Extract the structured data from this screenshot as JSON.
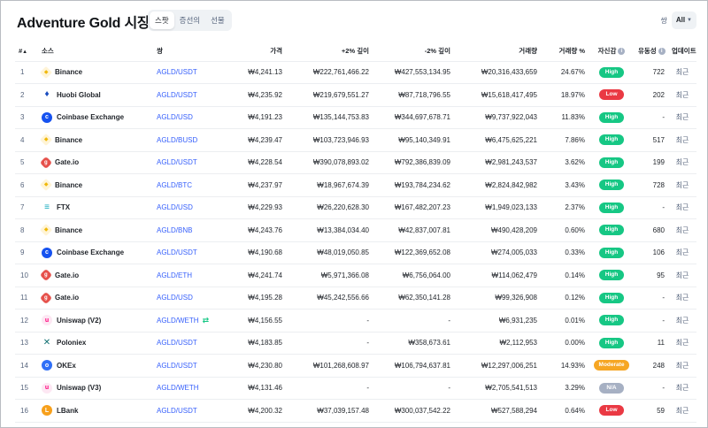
{
  "title": "Adventure Gold 시장",
  "segments": [
    "스팟",
    "증선의",
    "선물"
  ],
  "filter": {
    "label": "쌍",
    "value": "All"
  },
  "columns": {
    "rank": "#",
    "rank_arrow": "▲",
    "source": "소스",
    "pair": "쌍",
    "price": "가격",
    "depth_plus": "+2% 깊이",
    "depth_minus": "-2% 깊이",
    "volume": "거래량",
    "volume_pct": "거래량 %",
    "confidence": "자신감",
    "liquidity": "유동성",
    "updated": "업데이트"
  },
  "rows": [
    {
      "rank": "1",
      "source": "Binance",
      "logo": "binance-icon",
      "pair": "AGLD/USDT",
      "price": "₩4,241.13",
      "depth_plus": "₩222,761,466.22",
      "depth_minus": "₩427,553,134.95",
      "volume": "₩20,316,433,659",
      "volume_pct": "24.67%",
      "confidence": "High",
      "liquidity": "722",
      "updated": "최근"
    },
    {
      "rank": "2",
      "source": "Huobi Global",
      "logo": "huobi-icon",
      "pair": "AGLD/USDT",
      "price": "₩4,235.92",
      "depth_plus": "₩219,679,551.27",
      "depth_minus": "₩87,718,796.55",
      "volume": "₩15,618,417,495",
      "volume_pct": "18.97%",
      "confidence": "Low",
      "liquidity": "202",
      "updated": "최근"
    },
    {
      "rank": "3",
      "source": "Coinbase Exchange",
      "logo": "coinbase-icon",
      "pair": "AGLD/USD",
      "price": "₩4,191.23",
      "depth_plus": "₩135,144,753.83",
      "depth_minus": "₩344,697,678.71",
      "volume": "₩9,737,922,043",
      "volume_pct": "11.83%",
      "confidence": "High",
      "liquidity": "-",
      "updated": "최근"
    },
    {
      "rank": "4",
      "source": "Binance",
      "logo": "binance-icon",
      "pair": "AGLD/BUSD",
      "price": "₩4,239.47",
      "depth_plus": "₩103,723,946.93",
      "depth_minus": "₩95,140,349.91",
      "volume": "₩6,475,625,221",
      "volume_pct": "7.86%",
      "confidence": "High",
      "liquidity": "517",
      "updated": "최근"
    },
    {
      "rank": "5",
      "source": "Gate.io",
      "logo": "gate-icon",
      "pair": "AGLD/USDT",
      "price": "₩4,228.54",
      "depth_plus": "₩390,078,893.02",
      "depth_minus": "₩792,386,839.09",
      "volume": "₩2,981,243,537",
      "volume_pct": "3.62%",
      "confidence": "High",
      "liquidity": "199",
      "updated": "최근"
    },
    {
      "rank": "6",
      "source": "Binance",
      "logo": "binance-icon",
      "pair": "AGLD/BTC",
      "price": "₩4,237.97",
      "depth_plus": "₩18,967,674.39",
      "depth_minus": "₩193,784,234.62",
      "volume": "₩2,824,842,982",
      "volume_pct": "3.43%",
      "confidence": "High",
      "liquidity": "728",
      "updated": "최근"
    },
    {
      "rank": "7",
      "source": "FTX",
      "logo": "ftx-icon",
      "pair": "AGLD/USD",
      "price": "₩4,229.93",
      "depth_plus": "₩26,220,628.30",
      "depth_minus": "₩167,482,207.23",
      "volume": "₩1,949,023,133",
      "volume_pct": "2.37%",
      "confidence": "High",
      "liquidity": "-",
      "updated": "최근"
    },
    {
      "rank": "8",
      "source": "Binance",
      "logo": "binance-icon",
      "pair": "AGLD/BNB",
      "price": "₩4,243.76",
      "depth_plus": "₩13,384,034.40",
      "depth_minus": "₩42,837,007.81",
      "volume": "₩490,428,209",
      "volume_pct": "0.60%",
      "confidence": "High",
      "liquidity": "680",
      "updated": "최근"
    },
    {
      "rank": "9",
      "source": "Coinbase Exchange",
      "logo": "coinbase-icon",
      "pair": "AGLD/USDT",
      "price": "₩4,190.68",
      "depth_plus": "₩48,019,050.85",
      "depth_minus": "₩122,369,652.08",
      "volume": "₩274,005,033",
      "volume_pct": "0.33%",
      "confidence": "High",
      "liquidity": "106",
      "updated": "최근"
    },
    {
      "rank": "10",
      "source": "Gate.io",
      "logo": "gate-icon",
      "pair": "AGLD/ETH",
      "price": "₩4,241.74",
      "depth_plus": "₩5,971,366.08",
      "depth_minus": "₩6,756,064.00",
      "volume": "₩114,062,479",
      "volume_pct": "0.14%",
      "confidence": "High",
      "liquidity": "95",
      "updated": "최근"
    },
    {
      "rank": "11",
      "source": "Gate.io",
      "logo": "gate-icon",
      "pair": "AGLD/USD",
      "price": "₩4,195.28",
      "depth_plus": "₩45,242,556.66",
      "depth_minus": "₩62,350,141.28",
      "volume": "₩99,326,908",
      "volume_pct": "0.12%",
      "confidence": "High",
      "liquidity": "-",
      "updated": "최근"
    },
    {
      "rank": "12",
      "source": "Uniswap (V2)",
      "logo": "uniswap-icon",
      "pair": "AGLD/WETH",
      "pair_tag": "⇄",
      "price": "₩4,156.55",
      "depth_plus": "-",
      "depth_minus": "-",
      "volume": "₩6,931,235",
      "volume_pct": "0.01%",
      "confidence": "High",
      "liquidity": "-",
      "updated": "최근"
    },
    {
      "rank": "13",
      "source": "Poloniex",
      "logo": "poloniex-icon",
      "pair": "AGLD/USDT",
      "price": "₩4,183.85",
      "depth_plus": "-",
      "depth_minus": "₩358,673.61",
      "volume": "₩2,112,953",
      "volume_pct": "0.00%",
      "confidence": "High",
      "liquidity": "11",
      "updated": "최근"
    },
    {
      "rank": "14",
      "source": "OKEx",
      "logo": "okex-icon",
      "pair": "AGLD/USDT",
      "price": "₩4,230.80",
      "depth_plus": "₩101,268,608.97",
      "depth_minus": "₩106,794,637.81",
      "volume": "₩12,297,006,251",
      "volume_pct": "14.93%",
      "confidence": "Moderate",
      "liquidity": "248",
      "updated": "최근"
    },
    {
      "rank": "15",
      "source": "Uniswap (V3)",
      "logo": "uniswap-icon",
      "pair": "AGLD/WETH",
      "price": "₩4,131.46",
      "depth_plus": "-",
      "depth_minus": "-",
      "volume": "₩2,705,541,513",
      "volume_pct": "3.29%",
      "confidence": "N/A",
      "liquidity": "-",
      "updated": "최근"
    },
    {
      "rank": "16",
      "source": "LBank",
      "logo": "lbank-icon",
      "pair": "AGLD/USDT",
      "price": "₩4,200.32",
      "depth_plus": "₩37,039,157.48",
      "depth_minus": "₩300,037,542.22",
      "volume": "₩527,588,294",
      "volume_pct": "0.64%",
      "confidence": "Low",
      "liquidity": "59",
      "updated": "최근"
    }
  ],
  "colors": {
    "link": "#3861fb",
    "high": "#16c784",
    "low": "#ea3943",
    "moderate": "#f6a623",
    "na": "#a6b0c3"
  }
}
